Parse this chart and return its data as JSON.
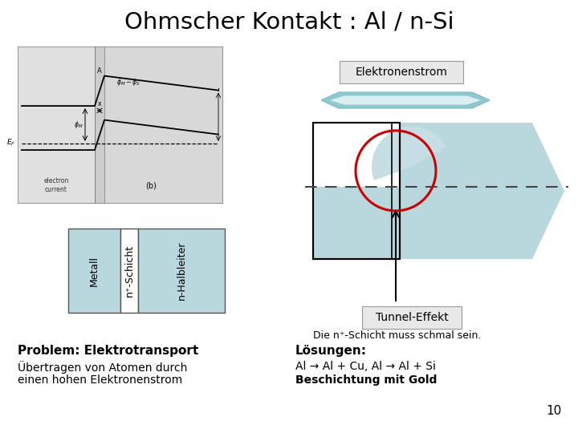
{
  "title": "Ohmscher Kontakt : Al / n-Si",
  "bg_color": "#ffffff",
  "light_blue": "#b8d8de",
  "light_blue2": "#c5dde3",
  "arrow_color": "#8ec8d0",
  "red_circle_color": "#cc0000",
  "label_elektronenstrom": "Elektronenstrom",
  "label_tunnel": "Tunnel-Effekt",
  "label_tunnel_note": "Die n⁺-Schicht muss schmal sein.",
  "label_metall": "Metall",
  "label_nplus": "n⁺-Schicht",
  "label_nhalb": "n-Halbleiter",
  "prob_title": "Problem: Elektrotransport",
  "prob_text1": "Übertragen von Atomen durch",
  "prob_text2": "einen hohen Elektronenstrom",
  "sol_title": "Lösungen:",
  "sol_text1": "Al → Al + Cu, Al → Al + Si",
  "sol_text2": "Beschichtung mit Gold",
  "page_num": "10"
}
